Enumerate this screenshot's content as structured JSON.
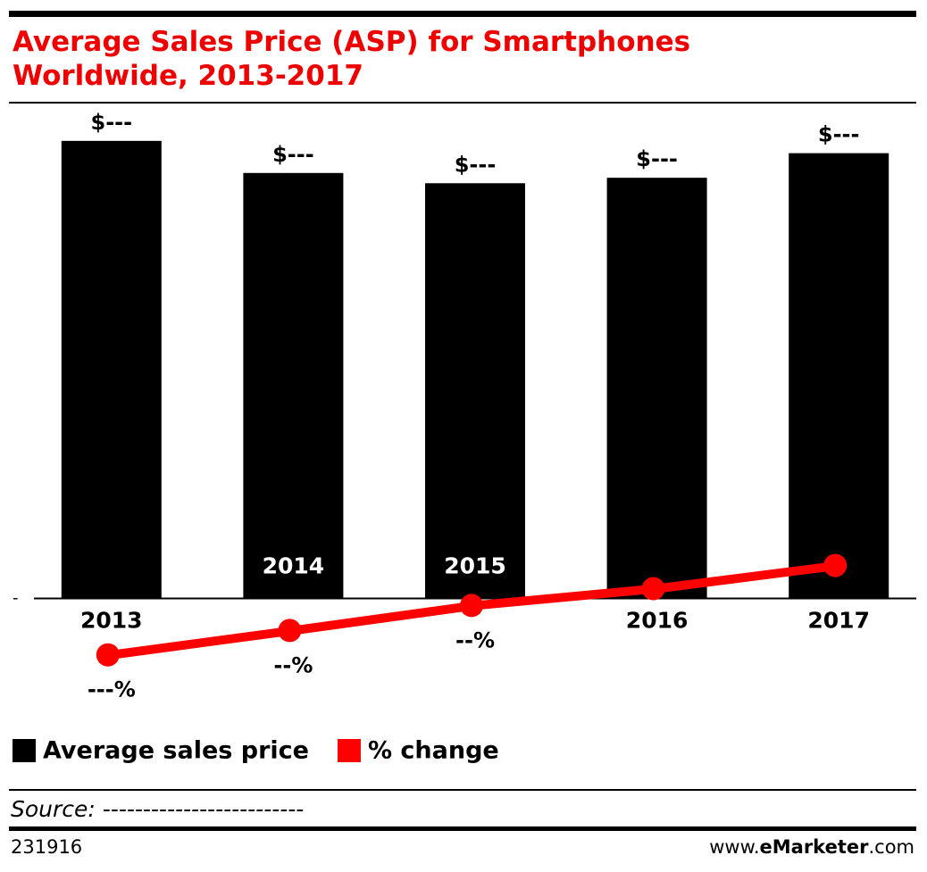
{
  "chart_data": {
    "type": "bar",
    "title": "Average Sales Price (ASP) for Smartphones Worldwide, 2013-2017",
    "categories": [
      "2013",
      "2014",
      "2015",
      "2016",
      "2017"
    ],
    "series": [
      {
        "name": "Average sales price",
        "color": "#000000",
        "values": [
          335,
          311.5,
          304,
          308,
          326
        ],
        "value_labels": [
          "$---",
          "$---",
          "$---",
          "$---",
          "$---"
        ]
      },
      {
        "name": "% change",
        "color": "#ff0000",
        "type": "line",
        "axis": "y2",
        "values": [
          -9,
          -5.1,
          -1.1,
          1.6,
          5.3
        ],
        "value_labels": [
          "---%",
          "--%",
          "--%",
          "-%",
          "-%"
        ]
      }
    ],
    "ylim": [
      -50,
      363
    ],
    "yticks": [
      {
        "value": 0,
        "label": "-"
      }
    ],
    "y2lim": [
      -10.9,
      79.4
    ],
    "legend": "bottom-left",
    "source": "Source: -------------------------",
    "chart_id": "231916",
    "site": [
      "www.",
      "eMarketer",
      ".com"
    ]
  }
}
